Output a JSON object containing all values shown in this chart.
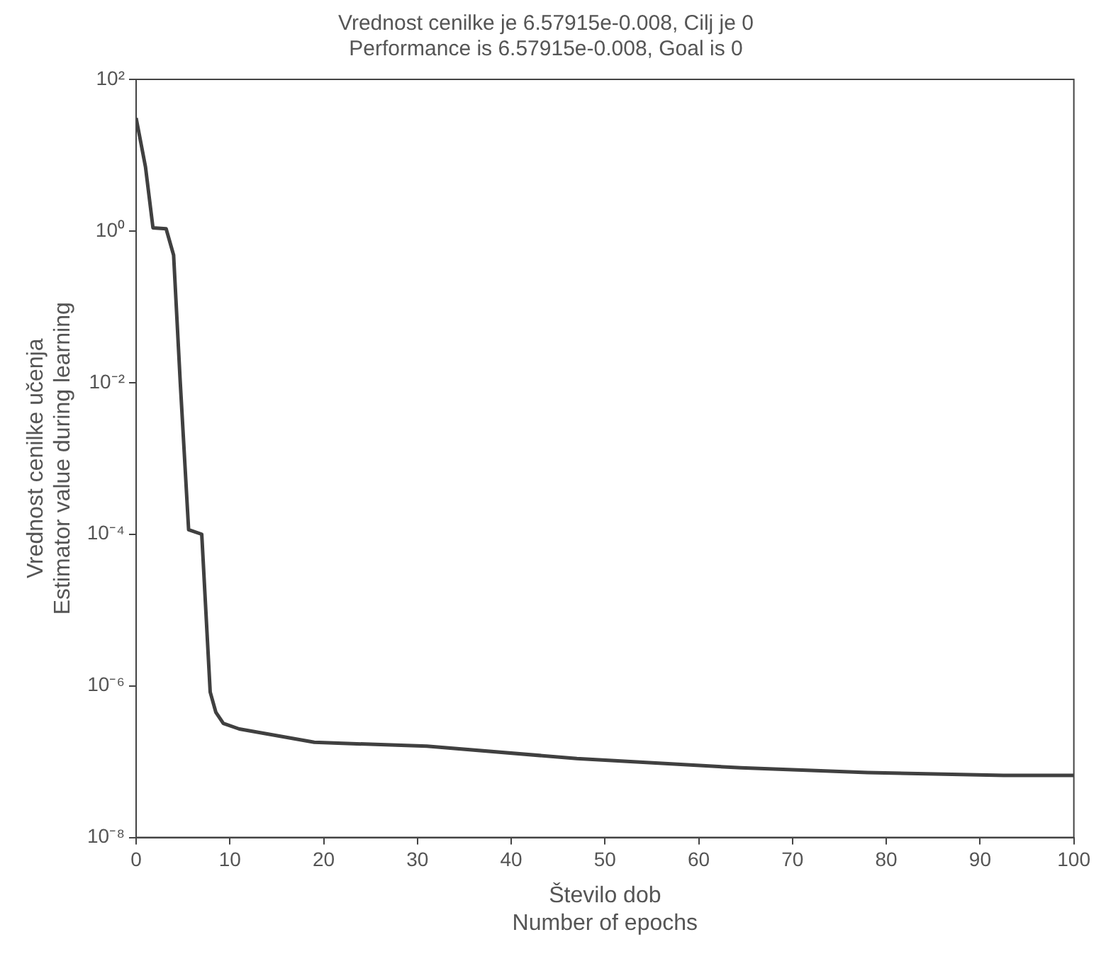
{
  "chart_data": {
    "type": "line",
    "title": "Vrednost cenilke je 6.57915e-0.008, Cilj je 0\nPerformance is 6.57915e-0.008, Goal is 0",
    "xlabel": "Število dob\nNumber of epochs",
    "ylabel": "Vrednost cenilke učenja\nEstimator value during learning",
    "x": [
      0,
      1,
      1.8,
      3.2,
      4,
      4.7,
      5.6,
      7,
      7.9,
      8.5,
      9.3,
      11,
      19,
      31,
      47,
      64.5,
      78,
      92.5,
      100
    ],
    "series": [
      {
        "color": "#404040",
        "values": [
          31,
          7,
          1.1,
          1.07,
          0.48,
          0.0105,
          0.000115,
          0.0001,
          8.3e-07,
          4.5e-07,
          3.2e-07,
          2.7e-07,
          1.8e-07,
          1.6e-07,
          1.1e-07,
          8.3e-08,
          7.2e-08,
          6.6e-08,
          6.58e-08
        ]
      }
    ],
    "log": "y",
    "grid": false,
    "legend": false,
    "marker": "none",
    "line_style": "solid",
    "xlim": [
      0,
      100
    ],
    "xticks": [
      0,
      10,
      20,
      30,
      40,
      50,
      60,
      70,
      80,
      90,
      100
    ],
    "ylim": [
      1e-08,
      100
    ],
    "yticks": [
      {
        "value": 100,
        "label": "10²"
      },
      {
        "value": 1,
        "label": "10⁰"
      },
      {
        "value": 0.01,
        "label": "10⁻²"
      },
      {
        "value": 0.0001,
        "label": "10⁻⁴"
      },
      {
        "value": 1e-06,
        "label": "10⁻⁶"
      },
      {
        "value": 1e-08,
        "label": "10⁻⁸"
      }
    ]
  }
}
